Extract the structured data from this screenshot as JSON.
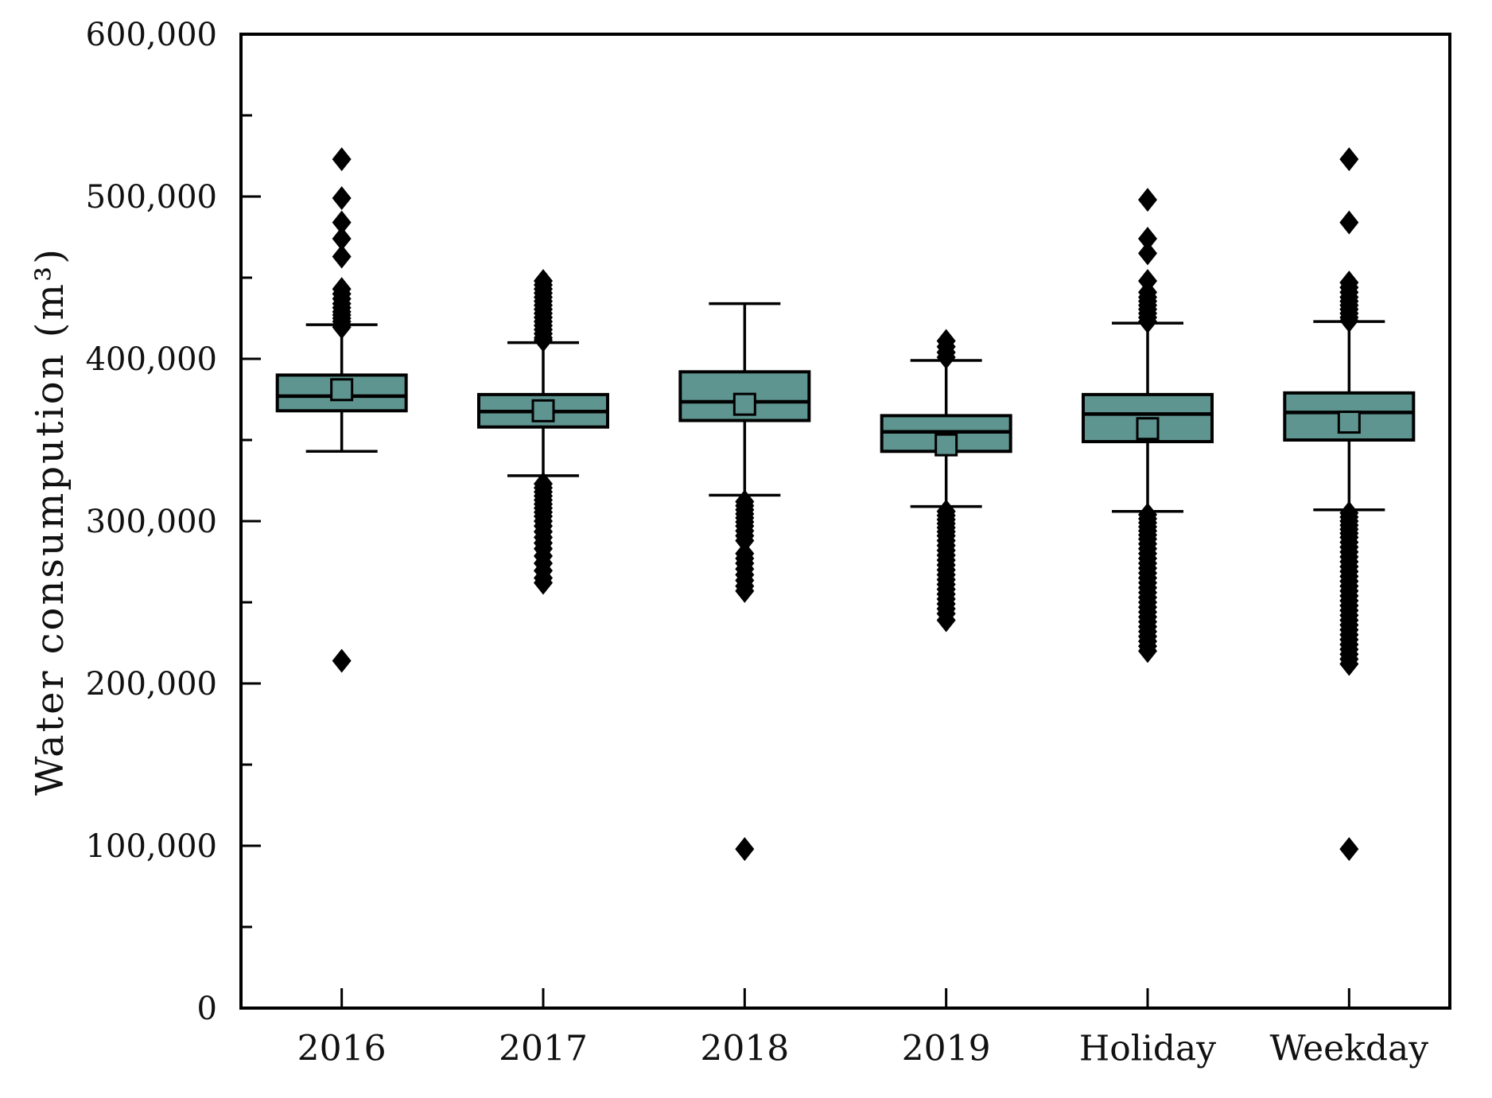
{
  "figure": {
    "background_color": "#ffffff",
    "text_color": "#111111"
  },
  "chart_data": {
    "type": "boxplot",
    "title": "",
    "xlabel": "",
    "ylabel": "Water consumpution (m³)",
    "ylim": [
      0,
      600000
    ],
    "y_major_tick_step": 100000,
    "y_minor_tick_step": 50000,
    "y_tick_labels": [
      "0",
      "100,000",
      "200,000",
      "300,000",
      "400,000",
      "500,000",
      "600,000"
    ],
    "grid": false,
    "legend": "none",
    "frame": true,
    "box_fill_color": "#5f9590",
    "box_edge_color": "#000000",
    "whisker_color": "#000000",
    "median_color": "#000000",
    "outlier_marker": "filled-diamond",
    "outlier_color": "#000000",
    "mean_marker": "open-square",
    "categories": [
      "2016",
      "2017",
      "2018",
      "2019",
      "Holiday",
      "Weekday"
    ],
    "series": [
      {
        "name": "2016",
        "q1": 368000,
        "median": 377000,
        "q3": 390000,
        "whisker_low": 343000,
        "whisker_high": 421000,
        "mean": 381000,
        "outliers_high": [
          523000,
          499000,
          484000,
          474000,
          463000,
          443000,
          440000,
          437000,
          434000,
          431500,
          429000,
          427000,
          425000,
          423000,
          421000,
          419500
        ],
        "outliers_low": [
          214000
        ]
      },
      {
        "name": "2017",
        "q1": 358000,
        "median": 367500,
        "q3": 378000,
        "whisker_low": 328000,
        "whisker_high": 410000,
        "mean": 368000,
        "outliers_high": [
          448000,
          445500,
          443000,
          440500,
          438000,
          435500,
          433000,
          430500,
          428000,
          425500,
          423000,
          420500,
          418000,
          415500,
          413000,
          411500
        ],
        "outliers_low": [
          323000,
          320500,
          318000,
          315500,
          313000,
          310500,
          308000,
          305500,
          303000,
          300000,
          297000,
          293500,
          290000,
          286500,
          283000,
          278500,
          274000,
          269500,
          265000,
          262000
        ]
      },
      {
        "name": "2018",
        "q1": 362000,
        "median": 373500,
        "q3": 392000,
        "whisker_low": 316000,
        "whisker_high": 434000,
        "mean": 372000,
        "outliers_high": [],
        "outliers_low": [
          312000,
          309500,
          307000,
          304500,
          302000,
          299500,
          297000,
          294000,
          291000,
          288000,
          280000,
          277000,
          274000,
          270500,
          267000,
          263500,
          260000,
          257000,
          98000
        ]
      },
      {
        "name": "2019",
        "q1": 343000,
        "median": 355000,
        "q3": 365000,
        "whisker_low": 309000,
        "whisker_high": 399000,
        "mean": 347000,
        "outliers_high": [
          411000,
          407500,
          404000,
          401000
        ],
        "outliers_low": [
          306000,
          303500,
          301000,
          298500,
          296000,
          293500,
          291000,
          288000,
          285000,
          282000,
          279000,
          276000,
          273000,
          270000,
          267000,
          264000,
          261000,
          258000,
          255000,
          252000,
          249000,
          246000,
          243000,
          239000
        ]
      },
      {
        "name": "Holiday",
        "q1": 349000,
        "median": 366000,
        "q3": 378000,
        "whisker_low": 306000,
        "whisker_high": 422000,
        "mean": 357000,
        "outliers_high": [
          498000,
          474000,
          465000,
          448000,
          441000,
          438000,
          435500,
          433000,
          430500,
          428000,
          425500,
          423000
        ],
        "outliers_low": [
          304000,
          301500,
          299000,
          296500,
          294000,
          291500,
          289000,
          286000,
          283000,
          280000,
          277000,
          274000,
          271000,
          268000,
          265000,
          262000,
          259000,
          256000,
          253000,
          250000,
          247000,
          244000,
          241000,
          238000,
          235000,
          232000,
          229000,
          226000,
          223000,
          220000
        ]
      },
      {
        "name": "Weekday",
        "q1": 350000,
        "median": 367000,
        "q3": 379000,
        "whisker_low": 307000,
        "whisker_high": 423000,
        "mean": 361000,
        "outliers_high": [
          523000,
          484000,
          447000,
          444000,
          441000,
          438000,
          435500,
          433000,
          430500,
          428000,
          425500,
          423500
        ],
        "outliers_low": [
          305000,
          302500,
          300000,
          297500,
          295000,
          292500,
          290000,
          287000,
          284000,
          281000,
          278000,
          275000,
          272000,
          269000,
          266000,
          263000,
          260000,
          257000,
          254000,
          251000,
          248000,
          245000,
          242000,
          239000,
          236000,
          233000,
          230000,
          227000,
          224000,
          221000,
          218000,
          215000,
          212000,
          98000
        ]
      }
    ]
  }
}
